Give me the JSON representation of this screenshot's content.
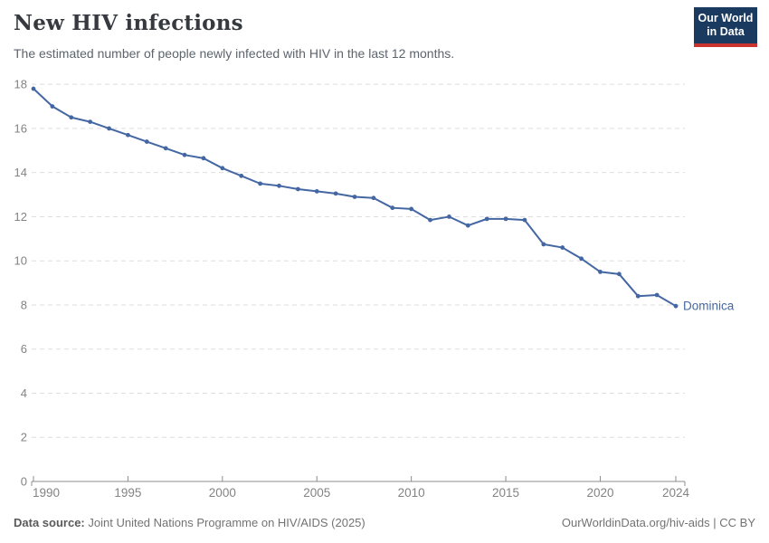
{
  "header": {
    "title": "New HIV infections",
    "subtitle": "The estimated number of people newly infected with HIV in the last 12 months.",
    "logo": {
      "line1": "Our World",
      "line2": "in Data"
    }
  },
  "chart_data": {
    "type": "line",
    "title": "New HIV infections",
    "entity": "Dominica",
    "x": [
      1990,
      1991,
      1992,
      1993,
      1994,
      1995,
      1996,
      1997,
      1998,
      1999,
      2000,
      2001,
      2002,
      2003,
      2004,
      2005,
      2006,
      2007,
      2008,
      2009,
      2010,
      2011,
      2012,
      2013,
      2014,
      2015,
      2016,
      2017,
      2018,
      2019,
      2020,
      2021,
      2022,
      2023,
      2024
    ],
    "series": [
      {
        "name": "Dominica",
        "values": [
          17.8,
          17.0,
          16.5,
          16.3,
          16.0,
          15.7,
          15.4,
          15.1,
          14.8,
          14.65,
          14.2,
          13.85,
          13.5,
          13.4,
          13.25,
          13.15,
          13.05,
          12.9,
          12.85,
          12.4,
          12.35,
          11.85,
          12.0,
          11.6,
          11.9,
          11.9,
          11.85,
          10.75,
          10.6,
          10.1,
          9.5,
          9.4,
          8.4,
          8.45,
          7.95
        ]
      }
    ],
    "xlabel": "",
    "ylabel": "",
    "xlim": [
      1990,
      2024
    ],
    "ylim": [
      0,
      18
    ],
    "xticks": [
      1990,
      1995,
      2000,
      2005,
      2010,
      2015,
      2020,
      2024
    ],
    "yticks": [
      0,
      2,
      4,
      6,
      8,
      10,
      12,
      14,
      16,
      18
    ],
    "grid": "horizontal-dashed",
    "legend_position": "end-of-line-label",
    "line_color": "#4467a3",
    "gridline_color": "#dedede",
    "axis_color": "#8c8c8c",
    "tick_label_color": "#838383"
  },
  "footer": {
    "source_label": "Data source:",
    "source_text": "Joint United Nations Programme on HIV/AIDS (2025)",
    "link_text": "OurWorldinData.org/hiv-aids | CC BY"
  },
  "brand_colors": {
    "logo_background": "#1b3a5f",
    "logo_underline": "#c9352e"
  }
}
